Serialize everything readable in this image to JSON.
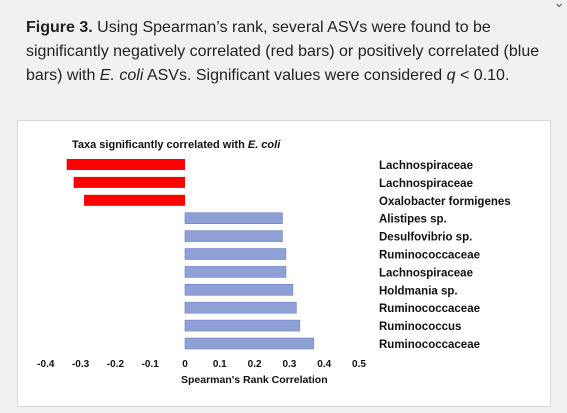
{
  "caption": {
    "label": "Figure 3.",
    "part1": " Using Spearman’s rank, several ASVs were found to be significantly negatively correlated (red bars) or positively correlated (blue bars) with ",
    "organism": "E. coli",
    "part2": " ASVs. Significant values were considered ",
    "q_symbol": "q",
    "part3": " < 0.10."
  },
  "chart_data": {
    "type": "bar",
    "orientation": "horizontal",
    "title_prefix": "Taxa significantly correlated with ",
    "title_organism": "E. coli",
    "xlabel": "Spearman's Rank Correlation",
    "ylabel": "",
    "xlim": [
      -0.4,
      0.5
    ],
    "xticks": [
      -0.4,
      -0.3,
      -0.2,
      -0.1,
      0,
      0.1,
      0.2,
      0.3,
      0.4,
      0.5
    ],
    "xtick_labels": [
      "-0.4",
      "-0.3",
      "-0.2",
      "-0.1",
      "0",
      "0.1",
      "0.2",
      "0.3",
      "0.4",
      "0.5"
    ],
    "grid": false,
    "categories": [
      "Lachnospiraceae",
      "Lachnospiraceae",
      "Oxalobacter formigenes",
      "Alistipes sp.",
      "Desulfovibrio sp.",
      "Ruminococcaceae",
      "Lachnospiraceae",
      "Holdmania sp.",
      "Ruminococcaceae",
      "Ruminococcus",
      "Ruminococcaceae"
    ],
    "values": [
      -0.34,
      -0.32,
      -0.29,
      0.28,
      0.28,
      0.29,
      0.29,
      0.31,
      0.32,
      0.33,
      0.37
    ],
    "colors": {
      "negative": "#ff0000",
      "positive": "#8ea0d6",
      "positive_edge": "#6f83c2"
    }
  }
}
